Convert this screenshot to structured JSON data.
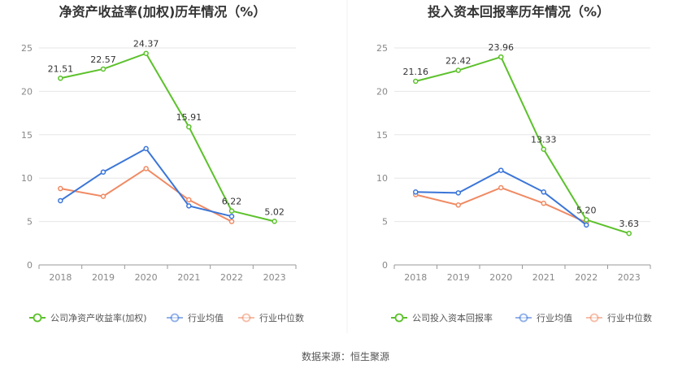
{
  "source": "数据来源：恒生聚源",
  "colors": {
    "company": "#5cc12b",
    "avg": "#3a75d8",
    "median": "#f08a63"
  },
  "chart_data": [
    {
      "type": "line",
      "title": "净资产收益率(加权)历年情况（%）",
      "categories": [
        "2018",
        "2019",
        "2020",
        "2021",
        "2022",
        "2023"
      ],
      "ylim": [
        0,
        25
      ],
      "yticks": [
        0,
        5,
        10,
        15,
        20,
        25
      ],
      "grid": true,
      "legend_position": "bottom",
      "series": [
        {
          "name": "公司净资产收益率(加权)",
          "values": [
            21.51,
            22.57,
            24.37,
            15.91,
            6.22,
            5.02
          ],
          "labels": [
            "21.51",
            "22.57",
            "24.37",
            "15.91",
            "6.22",
            "5.02"
          ]
        },
        {
          "name": "行业均值",
          "values": [
            7.4,
            10.7,
            13.4,
            6.8,
            5.6,
            null
          ]
        },
        {
          "name": "行业中位数",
          "values": [
            8.8,
            7.9,
            11.1,
            7.5,
            5.0,
            null
          ]
        }
      ]
    },
    {
      "type": "line",
      "title": "投入资本回报率历年情况（%）",
      "categories": [
        "2018",
        "2019",
        "2020",
        "2021",
        "2022",
        "2023"
      ],
      "ylim": [
        0,
        25
      ],
      "yticks": [
        0,
        5,
        10,
        15,
        20,
        25
      ],
      "grid": true,
      "legend_position": "bottom",
      "series": [
        {
          "name": "公司投入资本回报率",
          "values": [
            21.16,
            22.42,
            23.96,
            13.33,
            5.2,
            3.63
          ],
          "labels": [
            "21.16",
            "22.42",
            "23.96",
            "13.33",
            "5.20",
            "3.63"
          ]
        },
        {
          "name": "行业均值",
          "values": [
            8.4,
            8.3,
            10.9,
            8.4,
            4.6,
            null
          ]
        },
        {
          "name": "行业中位数",
          "values": [
            8.1,
            6.9,
            8.9,
            7.1,
            4.9,
            null
          ]
        }
      ]
    }
  ]
}
